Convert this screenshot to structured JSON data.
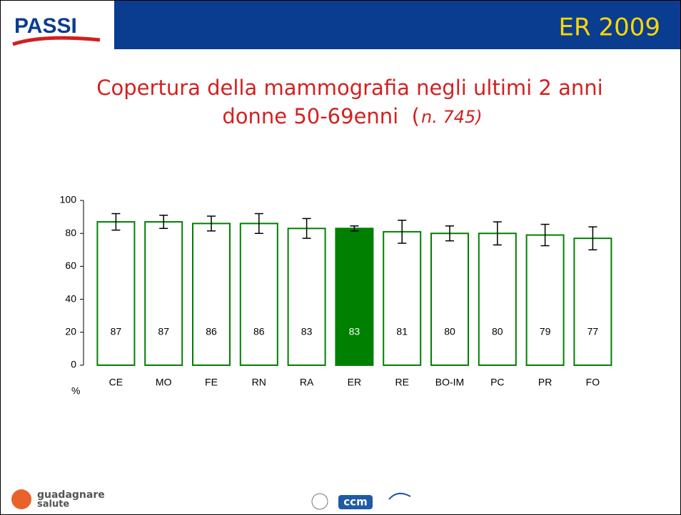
{
  "header": {
    "logo": "PASSI",
    "region": "ER 2009"
  },
  "chart_data": {
    "type": "bar",
    "title": "Copertura della mammografia negli ultimi 2 anni",
    "subtitle": "donne 50-69enni  (",
    "subtitle_note": "n. 745)",
    "y_unit": "%",
    "categories": [
      "CE",
      "MO",
      "FE",
      "RN",
      "RA",
      "ER",
      "RE",
      "BO-IM",
      "PC",
      "PR",
      "FO"
    ],
    "values": [
      87,
      87,
      86,
      86,
      83,
      83,
      81,
      80,
      80,
      79,
      77
    ],
    "errors": [
      5,
      4,
      4.5,
      6,
      6,
      1.5,
      7,
      4.5,
      7,
      6.5,
      7
    ],
    "color": "#008000",
    "highlight": "ER",
    "ylim": [
      0,
      100
    ],
    "yticks": [
      0,
      20,
      40,
      60,
      80,
      100
    ],
    "grid": false
  },
  "footer": {
    "left_logo": "guadagnare",
    "left_logo_2": "salute",
    "center_logo": "ccm"
  }
}
